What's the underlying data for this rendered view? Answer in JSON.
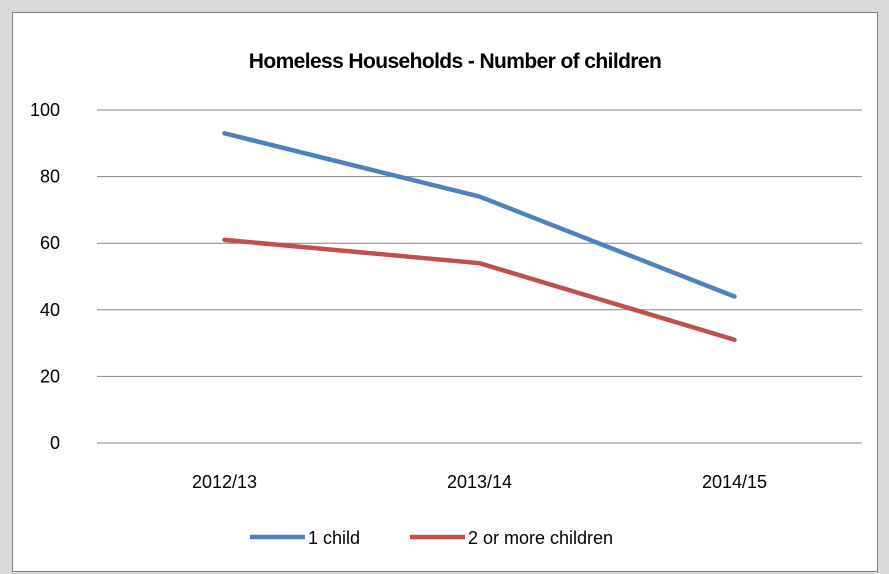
{
  "chart_data": {
    "type": "line",
    "title": "Homeless Households - Number of children",
    "categories": [
      "2012/13",
      "2013/14",
      "2014/15"
    ],
    "series": [
      {
        "name": "1 child",
        "values": [
          93,
          74,
          44
        ],
        "color": "#4f81bd"
      },
      {
        "name": "2 or more children",
        "values": [
          61,
          54,
          31
        ],
        "color": "#c0504d"
      }
    ],
    "ylim": [
      0,
      100
    ],
    "yticks": [
      0,
      20,
      40,
      60,
      80,
      100
    ],
    "grid": true,
    "legend": "bottom"
  }
}
